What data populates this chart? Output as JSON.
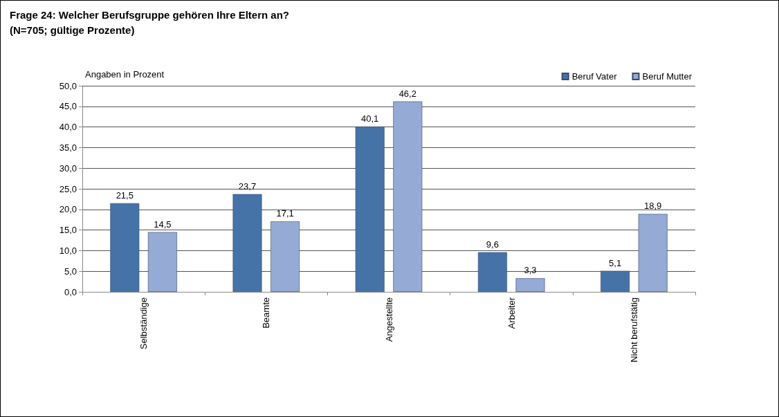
{
  "chart_data": {
    "type": "bar",
    "title": "Frage 24: Welcher Berufsgruppe gehören Ihre Eltern an?",
    "subtitle": "(N=705; gültige Prozente)",
    "ylabel": "Angaben in Prozent",
    "categories": [
      "Selbständige",
      "Beamte",
      "Angestellte",
      "Arbeiter",
      "Nicht berufstätig"
    ],
    "series": [
      {
        "name": "Beruf Vater",
        "color": "#4573a8",
        "values": [
          21.5,
          23.7,
          40.1,
          9.6,
          5.1
        ],
        "value_labels": [
          "21,5",
          "23,7",
          "40,1",
          "9,6",
          "5,1"
        ]
      },
      {
        "name": "Beruf Mutter",
        "color": "#95aad4",
        "values": [
          14.5,
          17.1,
          46.2,
          3.3,
          18.9
        ],
        "value_labels": [
          "14,5",
          "17,1",
          "46,2",
          "3,3",
          "18,9"
        ]
      }
    ],
    "ylim": [
      0,
      50
    ],
    "yticks": [
      {
        "value": 0,
        "label": "0,0"
      },
      {
        "value": 5,
        "label": "5,0"
      },
      {
        "value": 10,
        "label": "10,0"
      },
      {
        "value": 15,
        "label": "15,0"
      },
      {
        "value": 20,
        "label": "20,0"
      },
      {
        "value": 25,
        "label": "25,0"
      },
      {
        "value": 30,
        "label": "30,0"
      },
      {
        "value": 35,
        "label": "35,0"
      },
      {
        "value": 40,
        "label": "40,0"
      },
      {
        "value": 45,
        "label": "45,0"
      },
      {
        "value": 50,
        "label": "50,0"
      }
    ],
    "grid": "y",
    "legend": "top right"
  }
}
